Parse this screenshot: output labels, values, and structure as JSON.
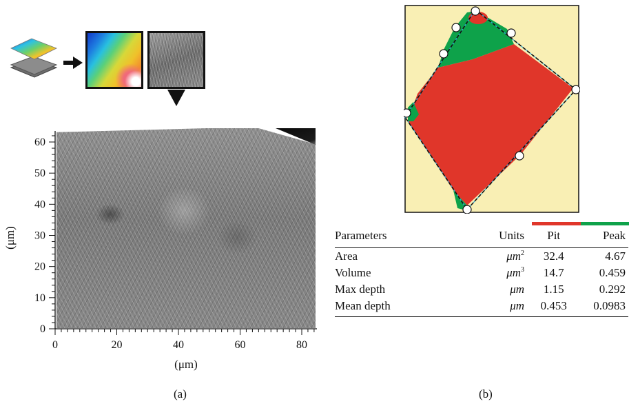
{
  "panel_a": {
    "label": "(a)",
    "x_axis": {
      "ticks": [
        "0",
        "20",
        "40",
        "60",
        "80"
      ],
      "title": "(μm)"
    },
    "y_axis": {
      "ticks": [
        "0",
        "10",
        "20",
        "30",
        "40",
        "50",
        "60"
      ],
      "title": "(μm)"
    },
    "thumb_icons": [
      "layer-stack-icon",
      "right-arrow-icon",
      "height-map-icon",
      "sem-thumbnail-icon",
      "down-pointer-icon"
    ]
  },
  "panel_b": {
    "label": "(b)",
    "colors": {
      "background": "#f9efb4",
      "pit": "#e0362a",
      "peak": "#0ea24a",
      "boundary": "#111111",
      "edge_line": "#2aa6d8"
    },
    "table": {
      "headers": {
        "parameters": "Parameters",
        "units": "Units",
        "pit": "Pit",
        "peak": "Peak"
      },
      "rows": [
        {
          "parameter": "Area",
          "unit_prefix": "μm",
          "unit_sup": "2",
          "pit": "32.4",
          "peak": "4.67"
        },
        {
          "parameter": "Volume",
          "unit_prefix": "μm",
          "unit_sup": "3",
          "pit": "14.7",
          "peak": "0.459"
        },
        {
          "parameter": "Max depth",
          "unit_prefix": "μm",
          "unit_sup": "",
          "pit": "1.15",
          "peak": "0.292"
        },
        {
          "parameter": "Mean depth",
          "unit_prefix": "μm",
          "unit_sup": "",
          "pit": "0.453",
          "peak": "0.0983"
        }
      ]
    }
  }
}
